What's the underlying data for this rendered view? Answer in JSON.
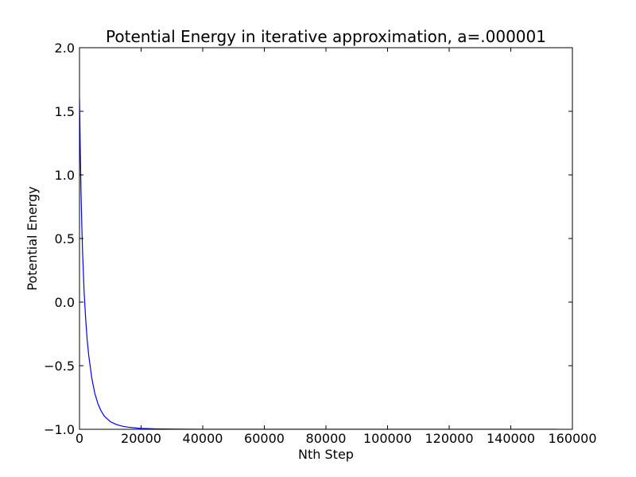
{
  "chart_data": {
    "type": "line",
    "title": "Potential Energy in iterative approximation, a=.000001",
    "xlabel": "Nth Step",
    "ylabel": "Potential Energy",
    "xlim": [
      0,
      160000
    ],
    "ylim": [
      -1.0,
      2.0
    ],
    "xticks": [
      0,
      20000,
      40000,
      60000,
      80000,
      100000,
      120000,
      140000,
      160000
    ],
    "xtick_labels": [
      "0",
      "20000",
      "40000",
      "60000",
      "80000",
      "100000",
      "120000",
      "140000",
      "160000"
    ],
    "yticks": [
      -1.0,
      -0.5,
      0.0,
      0.5,
      1.0,
      1.5,
      2.0
    ],
    "ytick_labels": [
      "−1.0",
      "−0.5",
      "0.0",
      "0.5",
      "1.0",
      "1.5",
      "2.0"
    ],
    "grid": false,
    "series": [
      {
        "color": "#0000ff",
        "x": [
          0,
          250,
          500,
          750,
          1000,
          1500,
          2000,
          2500,
          3000,
          4000,
          5000,
          6000,
          7000,
          8000,
          10000,
          12000,
          14000,
          16000,
          18000,
          20000,
          25000,
          30000,
          35000,
          40000,
          50000,
          60000,
          80000,
          100000,
          120000,
          140000,
          155000
        ],
        "y": [
          1.6,
          1.2,
          0.86,
          0.6,
          0.39,
          0.08,
          -0.13,
          -0.3,
          -0.42,
          -0.6,
          -0.72,
          -0.8,
          -0.855,
          -0.895,
          -0.94,
          -0.963,
          -0.976,
          -0.984,
          -0.989,
          -0.993,
          -0.997,
          -0.9985,
          -0.9993,
          -0.9997,
          -0.9999,
          -1.0,
          -1.0,
          -1.0,
          -1.0,
          -1.0,
          -1.0
        ]
      }
    ]
  }
}
